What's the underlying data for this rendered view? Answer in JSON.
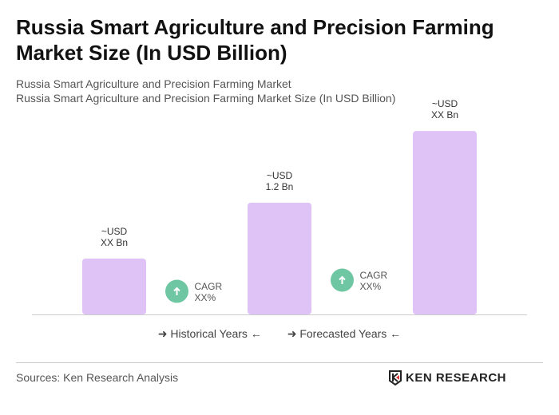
{
  "title": "Russia Smart Agriculture and Precision Farming Market Size (In USD Billion)",
  "subtitle1": "Russia Smart Agriculture and Precision Farming Market",
  "subtitle2": "Russia Smart Agriculture and Precision Farming Market Size (In USD Billion)",
  "chart_data": {
    "type": "bar",
    "categories": [
      "",
      "",
      ""
    ],
    "values": [
      0.6,
      1.2,
      1.97
    ],
    "data_labels": [
      [
        "~USD",
        "XX Bn"
      ],
      [
        "~USD",
        "1.2 Bn"
      ],
      [
        "~USD",
        "XX Bn"
      ]
    ],
    "bar_color": "#dfc3f7",
    "cagr": [
      {
        "label": "CAGR",
        "value": "XX%"
      },
      {
        "label": "CAGR",
        "value": "XX%"
      }
    ],
    "cagr_color": "#6fc6a2",
    "legend": [
      "Historical Years",
      "Forecasted Years"
    ],
    "grid": false
  },
  "source": "Sources: Ken Research Analysis",
  "logo": "KEN RESEARCH"
}
